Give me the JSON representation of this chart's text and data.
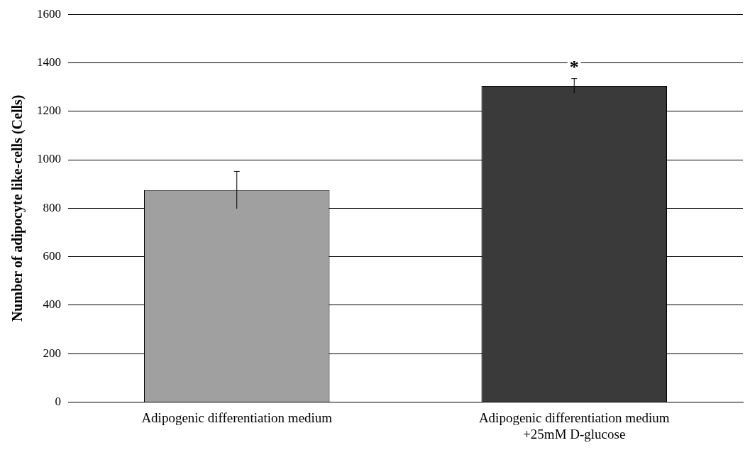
{
  "chart_data": {
    "type": "bar",
    "categories": [
      "Adipogenic differentiation medium",
      "Adipogenic differentiation medium\n+25mM D-glucose"
    ],
    "values": [
      875,
      1305
    ],
    "errors": [
      77,
      30
    ],
    "colors": [
      "#a0a0a0",
      "#3a3a3a"
    ],
    "ylabel": "Number of adipocyte like-cells (Cells)",
    "ylim": [
      0,
      1600
    ],
    "yticks": [
      0,
      200,
      400,
      600,
      800,
      1000,
      1200,
      1400,
      1600
    ],
    "grid": "y",
    "legend": false,
    "annotations": [
      "*"
    ]
  }
}
